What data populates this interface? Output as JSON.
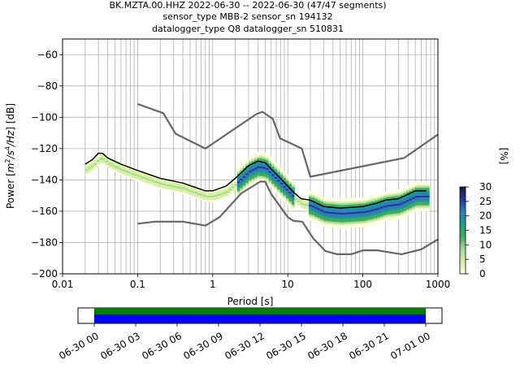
{
  "chart_data": {
    "type": "heatmap",
    "title_lines": [
      "BK.MZTA.00.HHZ   2022-06-30 -- 2022-06-30  (47/47 segments)",
      "sensor_type MBB-2 sensor_sn 194132",
      "datalogger_type Q8 datalogger_sn 510831"
    ],
    "xlabel": "Period [s]",
    "ylabel_parts": [
      "Power [",
      "m",
      "2",
      "/s",
      "4",
      "/Hz",
      "] [dB]"
    ],
    "x_scale": "log",
    "xlim": [
      0.01,
      1000
    ],
    "ylim": [
      -200,
      -50
    ],
    "x_tick_labels": [
      "0.01",
      "0.1",
      "1",
      "10",
      "100",
      "1000"
    ],
    "y_tick_labels": [
      "−60",
      "−80",
      "−100",
      "−120",
      "−140",
      "−160",
      "−180",
      "−200"
    ],
    "y_ticks": [
      -60,
      -80,
      -100,
      -120,
      -140,
      -160,
      -180,
      -200
    ],
    "grid": true,
    "vertical_period_gridlines": [
      0.02,
      0.03,
      0.04,
      0.05,
      0.06,
      0.07,
      0.08,
      0.09,
      0.2,
      0.3,
      0.4,
      0.5,
      0.6,
      0.7,
      0.8,
      0.9,
      2,
      3,
      4,
      5,
      6,
      7,
      8,
      9,
      20,
      30,
      40,
      50,
      60,
      70,
      80,
      90,
      200,
      300,
      400,
      500,
      600,
      700,
      800,
      900
    ],
    "colorbar": {
      "label": "[%]",
      "range": [
        0,
        30
      ],
      "tick_labels": [
        "0",
        "5",
        "10",
        "15",
        "20",
        "25",
        "30"
      ],
      "colormap": [
        "#ffffe5",
        "#d9f0a3",
        "#a1d99b",
        "#41ab5d",
        "#1d9e8c",
        "#2c7fb8",
        "#253494",
        "#1a1a40"
      ]
    },
    "series": [
      {
        "role": "noise-model-high",
        "color": "#666666",
        "points": [
          [
            0.1,
            -91.5
          ],
          [
            0.22,
            -97.4
          ],
          [
            0.32,
            -110.5
          ],
          [
            0.8,
            -120
          ],
          [
            3.8,
            -98
          ],
          [
            4.6,
            -96.5
          ],
          [
            6.3,
            -101
          ],
          [
            7.9,
            -113.5
          ],
          [
            15.4,
            -120
          ],
          [
            20,
            -138
          ],
          [
            354.8,
            -126
          ],
          [
            1000,
            -111
          ]
        ]
      },
      {
        "role": "noise-model-low",
        "color": "#666666",
        "points": [
          [
            0.1,
            -168
          ],
          [
            0.17,
            -166.7
          ],
          [
            0.4,
            -166.7
          ],
          [
            0.8,
            -169.2
          ],
          [
            1.24,
            -163.7
          ],
          [
            2.4,
            -148.6
          ],
          [
            4.3,
            -141.1
          ],
          [
            5,
            -141.1
          ],
          [
            6,
            -149
          ],
          [
            10,
            -163.8
          ],
          [
            12,
            -166.2
          ],
          [
            15.6,
            -166.7
          ],
          [
            21.9,
            -177.5
          ],
          [
            31.6,
            -185.4
          ],
          [
            45,
            -187.5
          ],
          [
            70,
            -187.5
          ],
          [
            101,
            -185
          ],
          [
            154,
            -185
          ],
          [
            328,
            -187.5
          ],
          [
            600,
            -184.4
          ],
          [
            1000,
            -178
          ]
        ]
      },
      {
        "role": "mean-psd",
        "color": "#000000",
        "points": [
          [
            0.02,
            -130
          ],
          [
            0.025,
            -127
          ],
          [
            0.03,
            -123
          ],
          [
            0.034,
            -123
          ],
          [
            0.04,
            -126
          ],
          [
            0.06,
            -130
          ],
          [
            0.1,
            -134
          ],
          [
            0.2,
            -139
          ],
          [
            0.4,
            -142
          ],
          [
            0.6,
            -145
          ],
          [
            0.8,
            -147
          ],
          [
            1,
            -147
          ],
          [
            1.5,
            -144
          ],
          [
            2,
            -139
          ],
          [
            3,
            -131
          ],
          [
            4,
            -128
          ],
          [
            5,
            -129
          ],
          [
            6,
            -133
          ],
          [
            8,
            -139
          ],
          [
            12,
            -148
          ],
          [
            15,
            -152
          ],
          [
            20,
            -153
          ],
          [
            30,
            -157
          ],
          [
            50,
            -158
          ],
          [
            100,
            -157
          ],
          [
            150,
            -155
          ],
          [
            200,
            -153
          ],
          [
            300,
            -152
          ],
          [
            500,
            -147
          ],
          [
            700,
            -147
          ]
        ]
      }
    ],
    "time_axis": {
      "tick_labels": [
        "06-30 00",
        "06-30 03",
        "06-30 06",
        "06-30 09",
        "06-30 12",
        "06-30 15",
        "06-30 18",
        "06-30 21",
        "07-01 00"
      ],
      "coverage_colors": [
        "#008000",
        "#0000ff"
      ]
    }
  }
}
